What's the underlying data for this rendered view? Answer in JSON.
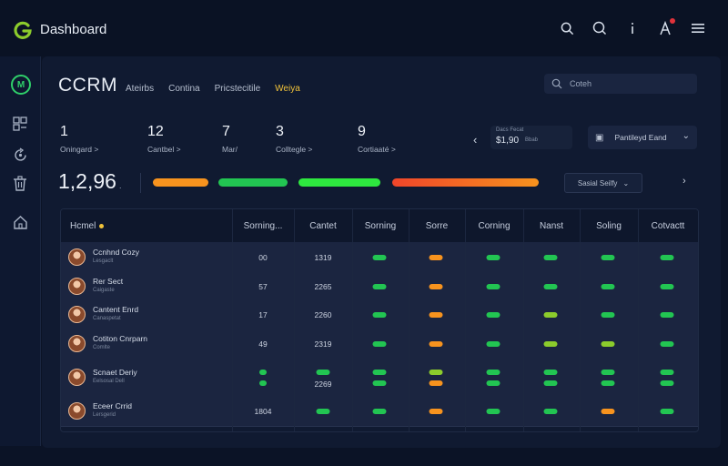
{
  "app": {
    "title": "Dashboard"
  },
  "colors": {
    "green": "#22c552",
    "orange": "#f7931e",
    "lime": "#8ccc2c",
    "accent_yellow": "#f0c23a",
    "red_dot": "#e0323b"
  },
  "topbar": {
    "icons": [
      "search-icon",
      "search-alt-icon",
      "more-vertical-icon",
      "notifications-icon",
      "menu-icon"
    ]
  },
  "sidebar": {
    "items": [
      "crm-logo-icon",
      "analytics-icon",
      "refresh-icon",
      "trash-icon",
      "home-icon"
    ]
  },
  "header": {
    "title": "CCRM",
    "tabs": [
      {
        "label": "Ateirbs",
        "active": false
      },
      {
        "label": "Contina",
        "active": false
      },
      {
        "label": "Pricstecitile",
        "active": false
      },
      {
        "label": "Weiya",
        "active": true
      }
    ],
    "search_text": "Coteh"
  },
  "stats": [
    {
      "value": "1",
      "label": "Oningard >"
    },
    {
      "value": "12",
      "label": "Cantbel >"
    },
    {
      "value": "7",
      "label": "Mar/"
    },
    {
      "value": "3",
      "label": "Colltegle >"
    },
    {
      "value": "9",
      "label": "Cortiaaté >"
    }
  ],
  "mini_card": {
    "title": "Dacs Fecat",
    "value": "$1,90",
    "unit": "Bbab"
  },
  "select": {
    "label": "Pantileyd Eand"
  },
  "big_value": {
    "value": "1,2,96",
    "unit": "."
  },
  "progress_bars": [
    {
      "name": "orange",
      "color": "#f7931e"
    },
    {
      "name": "green",
      "color": "#22c552"
    },
    {
      "name": "green-2",
      "color": "#2ee83f"
    },
    {
      "name": "red-orange",
      "color": "#f25c2a"
    }
  ],
  "filter_button": {
    "label": "Sasial Seilfy"
  },
  "table": {
    "columns": [
      "Hcmel",
      "Sorning...",
      "Cantet",
      "Sorning",
      "Sorre",
      "Corning",
      "Nanst",
      "Soling",
      "Cotvactt"
    ],
    "rows": [
      {
        "name": "Ccnhnd Cozy",
        "sub": "Lesgaclt",
        "col1": "00",
        "col2": "1319",
        "marks": [
          "green",
          "orange",
          "green",
          "green",
          "green",
          "green"
        ]
      },
      {
        "name": "Rer Sect",
        "sub": "Caigaste",
        "col1": "57",
        "col2": "2265",
        "marks": [
          "green",
          "orange",
          "green",
          "green",
          "green",
          "green"
        ]
      },
      {
        "name": "Cantent Enrd",
        "sub": "Canaspetat",
        "col1": "17",
        "col2": "2260",
        "marks": [
          "green",
          "orange",
          "green",
          "lime",
          "green",
          "green"
        ]
      },
      {
        "name": "Cotiton Cnrparn",
        "sub": "Comlte",
        "col1": "49",
        "col2": "2319",
        "marks": [
          "green",
          "orange",
          "green",
          "lime",
          "lime",
          "green"
        ]
      },
      {
        "name": "Scnaet Deriy",
        "sub": "Eelsosal Dell",
        "col1": "",
        "col2": "2269",
        "marks": [
          "green",
          "lime",
          "green",
          "green",
          "green",
          "green"
        ],
        "stacked": true
      },
      {
        "name": "Eceer Crrid",
        "sub": "Lersgerid",
        "col1": "1804",
        "col2": "",
        "marks": [
          "green",
          "orange",
          "green",
          "green",
          "orange",
          "green"
        ]
      }
    ]
  }
}
